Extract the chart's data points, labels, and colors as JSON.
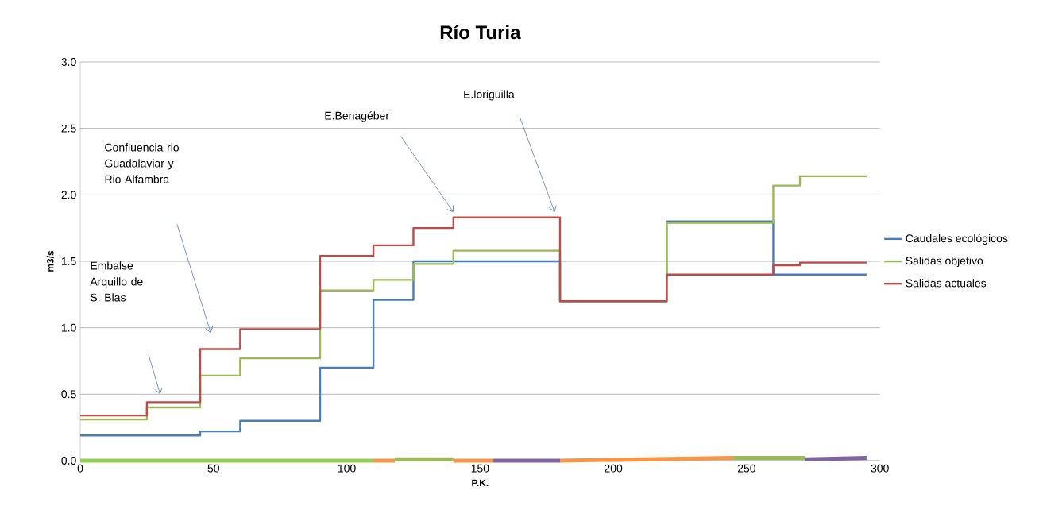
{
  "chart_data": {
    "type": "step",
    "title": "Río Turia",
    "xlabel": "P.K.",
    "ylabel": "m3/s",
    "xlim": [
      0,
      300
    ],
    "xticks": [
      0,
      50,
      100,
      150,
      200,
      250,
      300
    ],
    "ylim": [
      0,
      3
    ],
    "yticks": [
      {
        "value": 0,
        "label": "0.0"
      },
      {
        "value": 0.5,
        "label": "0.5"
      },
      {
        "value": 1,
        "label": "1.0"
      },
      {
        "value": 1.5,
        "label": "1.5"
      },
      {
        "value": 2,
        "label": "2.0"
      },
      {
        "value": 2.5,
        "label": "2.5"
      },
      {
        "value": 3,
        "label": "3.0"
      }
    ],
    "grid": "y",
    "legend": "right",
    "series": [
      {
        "name": "Caudales ecológicos",
        "color": "#4a7ebb",
        "x": [
          0,
          45,
          60,
          90,
          110,
          125,
          140,
          180,
          220,
          260,
          295
        ],
        "values": [
          0.19,
          0.22,
          0.3,
          0.7,
          1.21,
          1.5,
          1.5,
          1.2,
          1.8,
          1.4,
          1.4
        ]
      },
      {
        "name": "Salidas objetivo",
        "color": "#98b954",
        "x": [
          0,
          25,
          45,
          60,
          90,
          110,
          125,
          140,
          180,
          220,
          260,
          270,
          295
        ],
        "values": [
          0.31,
          0.4,
          0.64,
          0.77,
          1.28,
          1.36,
          1.48,
          1.58,
          1.2,
          1.79,
          2.07,
          2.14,
          2.14
        ]
      },
      {
        "name": "Salidas actuales",
        "color": "#be4b48",
        "x": [
          0,
          25,
          45,
          60,
          90,
          110,
          125,
          140,
          180,
          220,
          260,
          270,
          295
        ],
        "values": [
          0.34,
          0.44,
          0.84,
          0.99,
          1.54,
          1.62,
          1.75,
          1.83,
          1.2,
          1.4,
          1.47,
          1.49,
          1.49
        ]
      },
      {
        "type": "line",
        "color": "#92d050",
        "x": [
          0,
          110
        ],
        "values": [
          0,
          0
        ]
      },
      {
        "type": "line",
        "color": "#f79646",
        "x": [
          110,
          118
        ],
        "values": [
          0,
          0
        ]
      },
      {
        "type": "line",
        "color": "#9bbb59",
        "x": [
          118,
          140
        ],
        "values": [
          0.01,
          0.01
        ]
      },
      {
        "type": "line",
        "color": "#f79646",
        "x": [
          140,
          155
        ],
        "values": [
          0,
          0
        ]
      },
      {
        "type": "line",
        "color": "#8064a2",
        "x": [
          155,
          180
        ],
        "values": [
          0,
          0
        ]
      },
      {
        "type": "line",
        "color": "#f79646",
        "x": [
          180,
          245
        ],
        "values": [
          0,
          0.02
        ]
      },
      {
        "type": "line",
        "color": "#9bbb59",
        "x": [
          245,
          272
        ],
        "values": [
          0.02,
          0.02
        ]
      },
      {
        "type": "line",
        "color": "#8064a2",
        "x": [
          272,
          295
        ],
        "values": [
          0.01,
          0.02
        ]
      }
    ],
    "annotations": [
      "Embalse Arquillo de S. Blas",
      "Confluencia rio Guadalaviar y Rio Alfambra",
      "E.Benagéber",
      "E.loriguilla"
    ]
  }
}
